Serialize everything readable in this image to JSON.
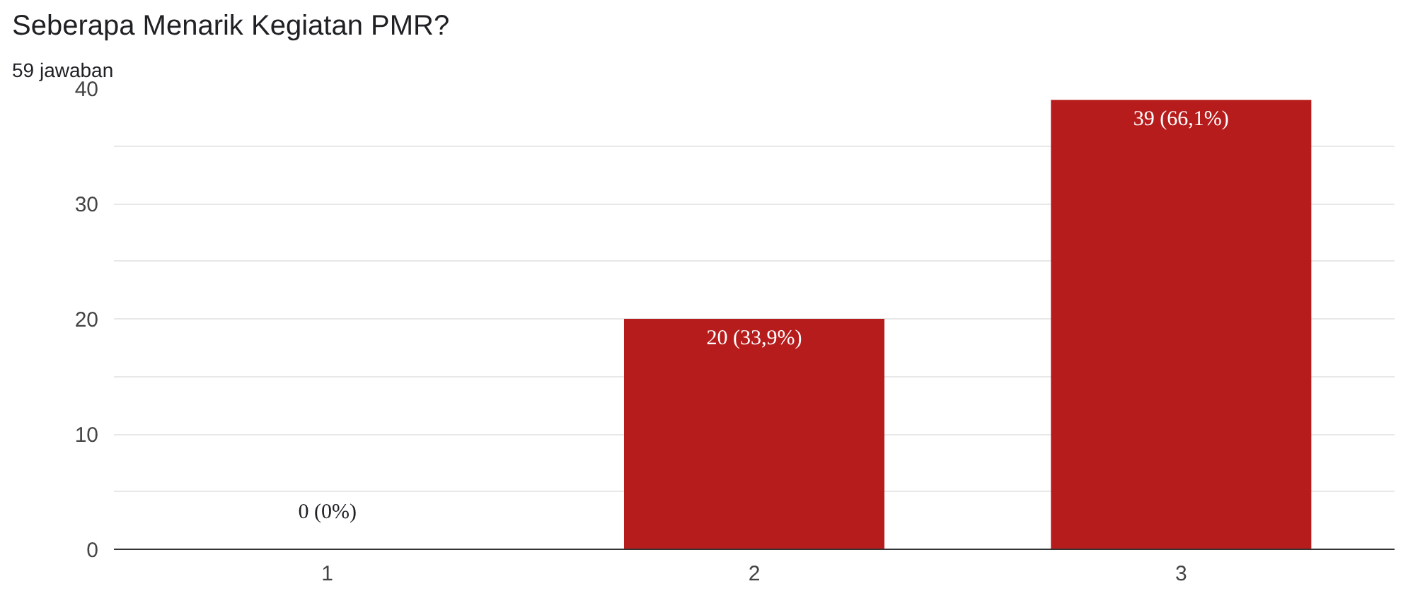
{
  "chart_data": {
    "type": "bar",
    "title": "Seberapa Menarik Kegiatan PMR?",
    "subtitle": "59 jawaban",
    "categories": [
      "1",
      "2",
      "3"
    ],
    "values": [
      0,
      20,
      39
    ],
    "value_labels": [
      "0 (0%)",
      "20 (33,9%)",
      "39 (66,1%)"
    ],
    "color": "#b71c1c",
    "ylim": [
      0,
      40
    ],
    "yticks": [
      0,
      {
        "value": 5,
        "label": null
      },
      10,
      {
        "value": 15,
        "label": null
      },
      20,
      {
        "value": 25,
        "label": null
      },
      30,
      {
        "value": 35,
        "label": null
      },
      40
    ],
    "grid": "y"
  }
}
